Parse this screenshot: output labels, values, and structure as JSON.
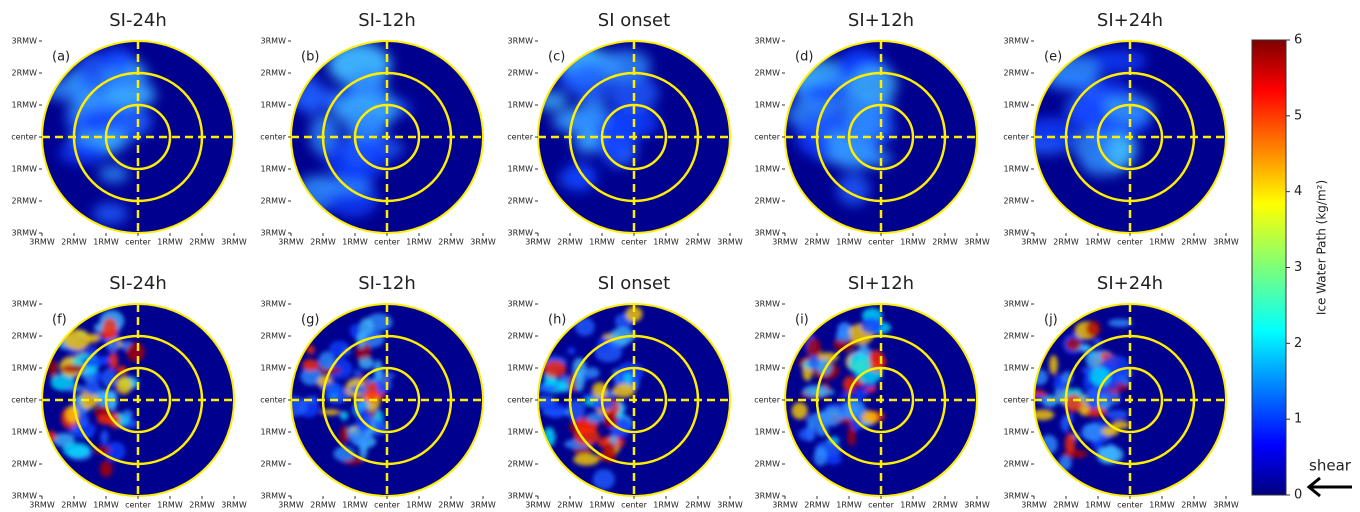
{
  "chart_data": [
    {
      "type": "polar-field",
      "title": "SI-24h",
      "panel_label": "(a)",
      "xlim": [
        -3,
        3
      ],
      "ylim": [
        -3,
        3
      ],
      "xticks": [
        {
          "value": -3,
          "label": "3RMW"
        },
        {
          "value": -2,
          "label": "2RMW"
        },
        {
          "value": -1,
          "label": "1RMW"
        },
        {
          "value": 0,
          "label": "center"
        },
        {
          "value": 1,
          "label": "1RMW"
        },
        {
          "value": 2,
          "label": "2RMW"
        },
        {
          "value": 3,
          "label": "3RMW"
        }
      ],
      "yticks": [
        {
          "value": -3,
          "label": "3RMW"
        },
        {
          "value": -2,
          "label": "2RMW"
        },
        {
          "value": -1,
          "label": "1RMW"
        },
        {
          "value": 0,
          "label": "center"
        },
        {
          "value": 1,
          "label": "1RMW"
        },
        {
          "value": 2,
          "label": "2RMW"
        },
        {
          "value": 3,
          "label": "3RMW"
        }
      ]
    },
    {
      "type": "polar-field",
      "title": "SI-12h",
      "panel_label": "(b)",
      "xlim": [
        -3,
        3
      ],
      "ylim": [
        -3,
        3
      ],
      "xticks": [
        {
          "value": -3,
          "label": "3RMW"
        },
        {
          "value": -2,
          "label": "2RMW"
        },
        {
          "value": -1,
          "label": "1RMW"
        },
        {
          "value": 0,
          "label": "center"
        },
        {
          "value": 1,
          "label": "1RMW"
        },
        {
          "value": 2,
          "label": "2RMW"
        },
        {
          "value": 3,
          "label": "3RMW"
        }
      ],
      "yticks": [
        {
          "value": -3,
          "label": "3RMW"
        },
        {
          "value": -2,
          "label": "2RMW"
        },
        {
          "value": -1,
          "label": "1RMW"
        },
        {
          "value": 0,
          "label": "center"
        },
        {
          "value": 1,
          "label": "1RMW"
        },
        {
          "value": 2,
          "label": "2RMW"
        },
        {
          "value": 3,
          "label": "3RMW"
        }
      ]
    },
    {
      "type": "polar-field",
      "title": "SI onset",
      "panel_label": "(c)",
      "xlim": [
        -3,
        3
      ],
      "ylim": [
        -3,
        3
      ],
      "xticks": [
        {
          "value": -3,
          "label": "3RMW"
        },
        {
          "value": -2,
          "label": "2RMW"
        },
        {
          "value": -1,
          "label": "1RMW"
        },
        {
          "value": 0,
          "label": "center"
        },
        {
          "value": 1,
          "label": "1RMW"
        },
        {
          "value": 2,
          "label": "2RMW"
        },
        {
          "value": 3,
          "label": "3RMW"
        }
      ],
      "yticks": [
        {
          "value": -3,
          "label": "3RMW"
        },
        {
          "value": -2,
          "label": "2RMW"
        },
        {
          "value": -1,
          "label": "1RMW"
        },
        {
          "value": 0,
          "label": "center"
        },
        {
          "value": 1,
          "label": "1RMW"
        },
        {
          "value": 2,
          "label": "2RMW"
        },
        {
          "value": 3,
          "label": "3RMW"
        }
      ]
    },
    {
      "type": "polar-field",
      "title": "SI+12h",
      "panel_label": "(d)",
      "xlim": [
        -3,
        3
      ],
      "ylim": [
        -3,
        3
      ],
      "xticks": [
        {
          "value": -3,
          "label": "3RMW"
        },
        {
          "value": -2,
          "label": "2RMW"
        },
        {
          "value": -1,
          "label": "1RMW"
        },
        {
          "value": 0,
          "label": "center"
        },
        {
          "value": 1,
          "label": "1RMW"
        },
        {
          "value": 2,
          "label": "2RMW"
        },
        {
          "value": 3,
          "label": "3RMW"
        }
      ],
      "yticks": [
        {
          "value": -3,
          "label": "3RMW"
        },
        {
          "value": -2,
          "label": "2RMW"
        },
        {
          "value": -1,
          "label": "1RMW"
        },
        {
          "value": 0,
          "label": "center"
        },
        {
          "value": 1,
          "label": "1RMW"
        },
        {
          "value": 2,
          "label": "2RMW"
        },
        {
          "value": 3,
          "label": "3RMW"
        }
      ]
    },
    {
      "type": "polar-field",
      "title": "SI+24h",
      "panel_label": "(e)",
      "xlim": [
        -3,
        3
      ],
      "ylim": [
        -3,
        3
      ],
      "xticks": [
        {
          "value": -3,
          "label": "3RMW"
        },
        {
          "value": -2,
          "label": "2RMW"
        },
        {
          "value": -1,
          "label": "1RMW"
        },
        {
          "value": 0,
          "label": "center"
        },
        {
          "value": 1,
          "label": "1RMW"
        },
        {
          "value": 2,
          "label": "2RMW"
        },
        {
          "value": 3,
          "label": "3RMW"
        }
      ],
      "yticks": [
        {
          "value": -3,
          "label": "3RMW"
        },
        {
          "value": -2,
          "label": "2RMW"
        },
        {
          "value": -1,
          "label": "1RMW"
        },
        {
          "value": 0,
          "label": "center"
        },
        {
          "value": 1,
          "label": "1RMW"
        },
        {
          "value": 2,
          "label": "2RMW"
        },
        {
          "value": 3,
          "label": "3RMW"
        }
      ]
    },
    {
      "type": "polar-field",
      "title": "SI-24h",
      "panel_label": "(f)",
      "xlim": [
        -3,
        3
      ],
      "ylim": [
        -3,
        3
      ],
      "xticks": [
        {
          "value": -3,
          "label": "3RMW"
        },
        {
          "value": -2,
          "label": "2RMW"
        },
        {
          "value": -1,
          "label": "1RMW"
        },
        {
          "value": 0,
          "label": "center"
        },
        {
          "value": 1,
          "label": "1RMW"
        },
        {
          "value": 2,
          "label": "2RMW"
        },
        {
          "value": 3,
          "label": "3RMW"
        }
      ],
      "yticks": [
        {
          "value": -3,
          "label": "3RMW"
        },
        {
          "value": -2,
          "label": "2RMW"
        },
        {
          "value": -1,
          "label": "1RMW"
        },
        {
          "value": 0,
          "label": "center"
        },
        {
          "value": 1,
          "label": "1RMW"
        },
        {
          "value": 2,
          "label": "2RMW"
        },
        {
          "value": 3,
          "label": "3RMW"
        }
      ]
    },
    {
      "type": "polar-field",
      "title": "SI-12h",
      "panel_label": "(g)",
      "xlim": [
        -3,
        3
      ],
      "ylim": [
        -3,
        3
      ],
      "xticks": [
        {
          "value": -3,
          "label": "3RMW"
        },
        {
          "value": -2,
          "label": "2RMW"
        },
        {
          "value": -1,
          "label": "1RMW"
        },
        {
          "value": 0,
          "label": "center"
        },
        {
          "value": 1,
          "label": "1RMW"
        },
        {
          "value": 2,
          "label": "2RMW"
        },
        {
          "value": 3,
          "label": "3RMW"
        }
      ],
      "yticks": [
        {
          "value": -3,
          "label": "3RMW"
        },
        {
          "value": -2,
          "label": "2RMW"
        },
        {
          "value": -1,
          "label": "1RMW"
        },
        {
          "value": 0,
          "label": "center"
        },
        {
          "value": 1,
          "label": "1RMW"
        },
        {
          "value": 2,
          "label": "2RMW"
        },
        {
          "value": 3,
          "label": "3RMW"
        }
      ]
    },
    {
      "type": "polar-field",
      "title": "SI onset",
      "panel_label": "(h)",
      "xlim": [
        -3,
        3
      ],
      "ylim": [
        -3,
        3
      ],
      "xticks": [
        {
          "value": -3,
          "label": "3RMW"
        },
        {
          "value": -2,
          "label": "2RMW"
        },
        {
          "value": -1,
          "label": "1RMW"
        },
        {
          "value": 0,
          "label": "center"
        },
        {
          "value": 1,
          "label": "1RMW"
        },
        {
          "value": 2,
          "label": "2RMW"
        },
        {
          "value": 3,
          "label": "3RMW"
        }
      ],
      "yticks": [
        {
          "value": -3,
          "label": "3RMW"
        },
        {
          "value": -2,
          "label": "2RMW"
        },
        {
          "value": -1,
          "label": "1RMW"
        },
        {
          "value": 0,
          "label": "center"
        },
        {
          "value": 1,
          "label": "1RMW"
        },
        {
          "value": 2,
          "label": "2RMW"
        },
        {
          "value": 3,
          "label": "3RMW"
        }
      ]
    },
    {
      "type": "polar-field",
      "title": "SI+12h",
      "panel_label": "(i)",
      "xlim": [
        -3,
        3
      ],
      "ylim": [
        -3,
        3
      ],
      "xticks": [
        {
          "value": -3,
          "label": "3RMW"
        },
        {
          "value": -2,
          "label": "2RMW"
        },
        {
          "value": -1,
          "label": "1RMW"
        },
        {
          "value": 0,
          "label": "center"
        },
        {
          "value": 1,
          "label": "1RMW"
        },
        {
          "value": 2,
          "label": "2RMW"
        },
        {
          "value": 3,
          "label": "3RMW"
        }
      ],
      "yticks": [
        {
          "value": -3,
          "label": "3RMW"
        },
        {
          "value": -2,
          "label": "2RMW"
        },
        {
          "value": -1,
          "label": "1RMW"
        },
        {
          "value": 0,
          "label": "center"
        },
        {
          "value": 1,
          "label": "1RMW"
        },
        {
          "value": 2,
          "label": "2RMW"
        },
        {
          "value": 3,
          "label": "3RMW"
        }
      ]
    },
    {
      "type": "polar-field",
      "title": "SI+24h",
      "panel_label": "(j)",
      "xlim": [
        -3,
        3
      ],
      "ylim": [
        -3,
        3
      ],
      "xticks": [
        {
          "value": -3,
          "label": "3RMW"
        },
        {
          "value": -2,
          "label": "2RMW"
        },
        {
          "value": -1,
          "label": "1RMW"
        },
        {
          "value": 0,
          "label": "center"
        },
        {
          "value": 1,
          "label": "1RMW"
        },
        {
          "value": 2,
          "label": "2RMW"
        },
        {
          "value": 3,
          "label": "3RMW"
        }
      ],
      "yticks": [
        {
          "value": -3,
          "label": "3RMW"
        },
        {
          "value": -2,
          "label": "2RMW"
        },
        {
          "value": -1,
          "label": "1RMW"
        },
        {
          "value": 0,
          "label": "center"
        },
        {
          "value": 1,
          "label": "1RMW"
        },
        {
          "value": 2,
          "label": "2RMW"
        },
        {
          "value": 3,
          "label": "3RMW"
        }
      ]
    },
    {
      "type": "colorbar",
      "label": "Ice Water Path (kg/m²)",
      "ylim": [
        0,
        6
      ],
      "yticks": [
        0,
        1,
        2,
        3,
        4,
        5,
        6
      ],
      "annotation": "shear"
    }
  ]
}
